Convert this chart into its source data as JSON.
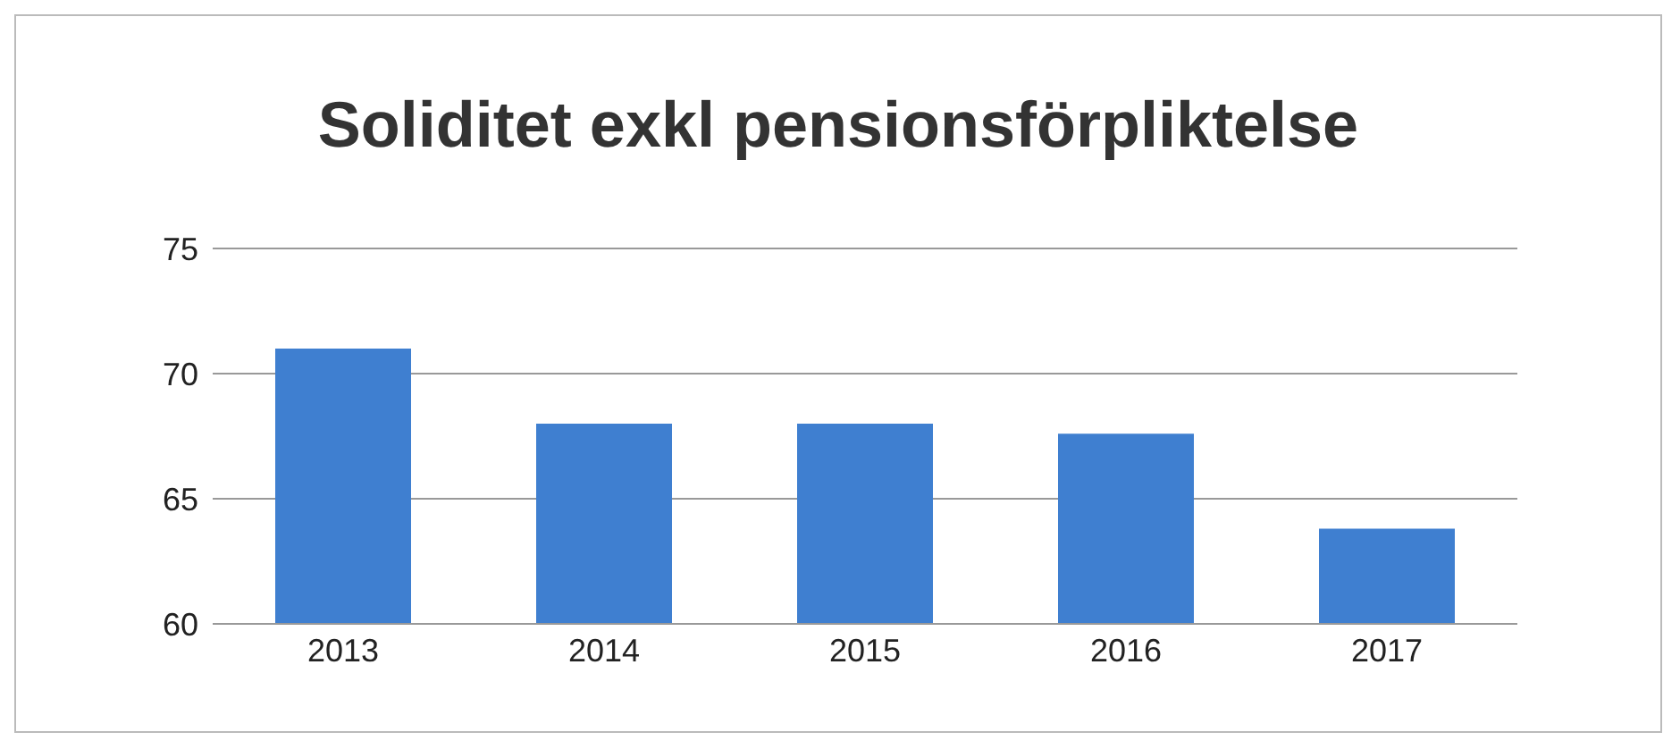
{
  "chart_data": {
    "type": "bar",
    "title": "Soliditet exkl pensionsförpliktelse",
    "categories": [
      "2013",
      "2014",
      "2015",
      "2016",
      "2017"
    ],
    "values": [
      71,
      68,
      68,
      67.6,
      63.8
    ],
    "color": "#3f7fd0",
    "ylim": [
      60,
      75
    ],
    "yticks": [
      60,
      65,
      70,
      75
    ],
    "grid": "y"
  }
}
